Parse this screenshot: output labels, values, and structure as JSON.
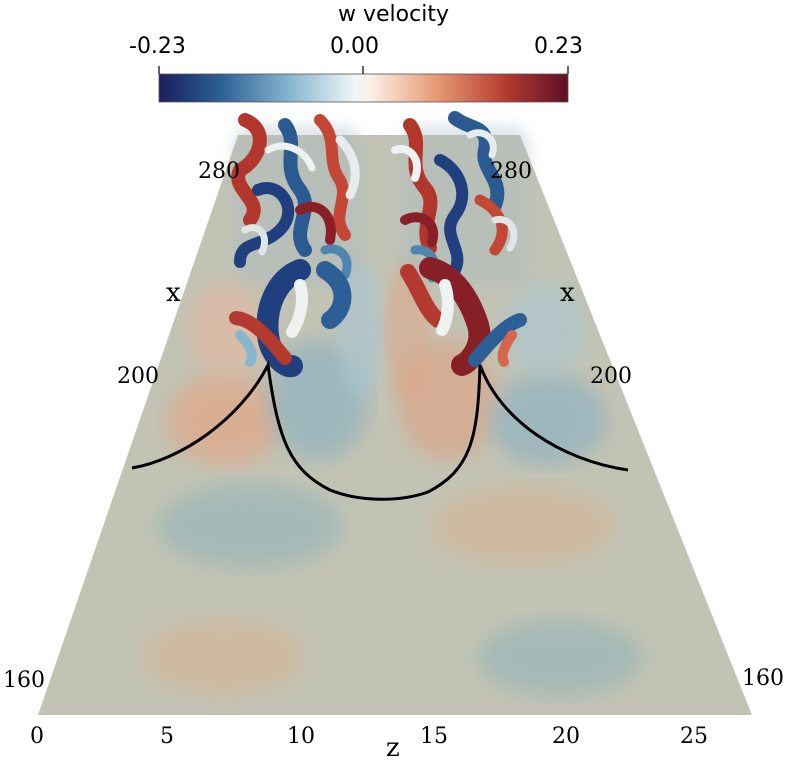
{
  "colorbar": {
    "title": "w velocity",
    "min_label": "-0.23",
    "mid_label": "0.00",
    "max_label": "0.23",
    "colors_negative": [
      "#1a1f5c",
      "#1f3f7f",
      "#2c5f95",
      "#4f86b0",
      "#88b6cf",
      "#c5e0ea",
      "#eef6f8"
    ],
    "colors_positive": [
      "#fbeee4",
      "#f3c9a8",
      "#e69a73",
      "#d4674c",
      "#b4392f",
      "#871f26",
      "#5c1027"
    ]
  },
  "axes": {
    "x_label_left": "x",
    "x_label_right": "x",
    "x_tick_280_left": "280",
    "x_tick_280_right": "280",
    "x_tick_200_left": "200",
    "x_tick_200_right": "200",
    "x_tick_160_left": "160",
    "x_tick_160_right": "160",
    "z_label": "z",
    "z_ticks": [
      "0",
      "5",
      "10",
      "15",
      "20",
      "25"
    ]
  },
  "colors": {
    "plane": "#c2c3b4",
    "negative_patch": "#9bb7b8",
    "positive_patch": "#d2b79a",
    "curve": "#000000"
  }
}
